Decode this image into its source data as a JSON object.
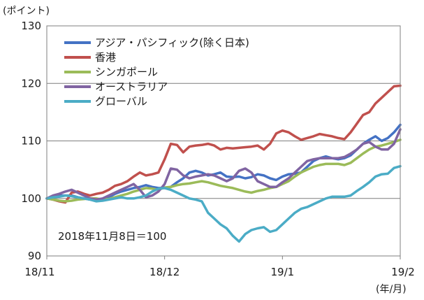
{
  "chart_data": {
    "type": "line",
    "yunit": "(ポイント)",
    "xunit": "(年/月)",
    "note": "2018年11月8日＝100",
    "ylim": [
      90,
      130
    ],
    "yticks": [
      90,
      100,
      110,
      120,
      130
    ],
    "ytick_labels": [
      "90",
      "100",
      "110",
      "120",
      "130"
    ],
    "xlim": [
      0,
      57
    ],
    "xticks": [
      {
        "pos": 0,
        "label": "18/11"
      },
      {
        "pos": 19,
        "label": "18/12"
      },
      {
        "pos": 38,
        "label": "19/1"
      },
      {
        "pos": 57,
        "label": "19/2"
      }
    ],
    "grid": "horizontal",
    "legend": "top-left",
    "series": [
      {
        "name": "アジア・パシフィック(除く日本)",
        "color": "#4472C4",
        "values": [
          100,
          100.3,
          100.5,
          100.5,
          100.5,
          100.2,
          100.0,
          99.8,
          99.7,
          99.8,
          100.2,
          100.8,
          101.2,
          101.5,
          101.8,
          102.0,
          102.3,
          102.0,
          101.8,
          101.8,
          102.0,
          102.8,
          103.5,
          104.5,
          104.8,
          104.5,
          104.0,
          104.2,
          104.5,
          103.8,
          103.7,
          103.8,
          103.5,
          103.7,
          104.2,
          104.0,
          103.5,
          103.2,
          103.8,
          104.2,
          104.3,
          104.5,
          105.5,
          106.5,
          107.0,
          107.3,
          107.0,
          106.8,
          107.0,
          107.5,
          108.5,
          109.5,
          110.2,
          110.8,
          110.0,
          110.5,
          111.5,
          112.8
        ]
      },
      {
        "name": "香港",
        "color": "#C0504D",
        "values": [
          100,
          99.8,
          99.5,
          99.3,
          101.0,
          101.2,
          100.8,
          100.5,
          100.8,
          101.0,
          101.5,
          102.2,
          102.5,
          103.0,
          103.8,
          104.5,
          104.0,
          104.2,
          104.5,
          106.8,
          109.5,
          109.3,
          108.0,
          109.0,
          109.2,
          109.3,
          109.5,
          109.2,
          108.5,
          108.8,
          108.7,
          108.8,
          108.9,
          109.0,
          109.2,
          108.5,
          109.5,
          111.3,
          111.8,
          111.5,
          110.8,
          110.2,
          110.5,
          110.8,
          111.2,
          111.0,
          110.8,
          110.5,
          110.3,
          111.5,
          113.0,
          114.5,
          115.0,
          116.5,
          117.5,
          118.5,
          119.5,
          119.6
        ]
      },
      {
        "name": "シンガポール",
        "color": "#9BBB59",
        "values": [
          100,
          99.8,
          99.6,
          99.5,
          99.6,
          99.8,
          99.9,
          100.0,
          100.0,
          99.8,
          99.9,
          100.2,
          100.5,
          100.8,
          101.2,
          101.5,
          101.8,
          101.7,
          101.5,
          101.9,
          102.0,
          102.3,
          102.5,
          102.6,
          102.8,
          103.0,
          102.8,
          102.5,
          102.2,
          102.0,
          101.8,
          101.5,
          101.2,
          101.0,
          101.3,
          101.5,
          101.8,
          102.0,
          102.5,
          103.0,
          103.8,
          104.5,
          105.0,
          105.5,
          105.8,
          106.0,
          106.0,
          106.0,
          105.8,
          106.2,
          107.0,
          107.8,
          108.5,
          109.0,
          109.2,
          109.5,
          109.8,
          110.2
        ]
      },
      {
        "name": "オーストラリア",
        "color": "#8064A2",
        "values": [
          100,
          100.5,
          100.8,
          101.2,
          101.5,
          101.0,
          100.5,
          100.0,
          99.8,
          100.0,
          100.5,
          101.0,
          101.5,
          102.0,
          102.5,
          101.5,
          100.2,
          100.5,
          101.2,
          102.5,
          105.2,
          105.0,
          104.0,
          103.5,
          103.8,
          104.0,
          104.2,
          104.0,
          103.5,
          103.0,
          103.5,
          104.8,
          105.2,
          104.5,
          103.0,
          102.5,
          102.0,
          102.0,
          102.8,
          103.5,
          104.5,
          105.5,
          106.5,
          106.8,
          107.0,
          107.0,
          107.0,
          107.0,
          107.2,
          107.8,
          108.5,
          109.5,
          109.8,
          109.0,
          108.5,
          108.5,
          109.5,
          112.0
        ]
      },
      {
        "name": "グローバル",
        "color": "#4BACC6",
        "values": [
          100,
          100.2,
          100.3,
          100.5,
          100.4,
          100.2,
          100.0,
          99.8,
          99.5,
          99.6,
          99.8,
          100.0,
          100.2,
          100.0,
          100.0,
          100.2,
          100.5,
          101.2,
          101.7,
          101.8,
          101.5,
          101.0,
          100.5,
          100.0,
          99.8,
          99.5,
          97.5,
          96.5,
          95.5,
          94.8,
          93.5,
          92.5,
          93.8,
          94.5,
          94.8,
          95.0,
          94.2,
          94.5,
          95.5,
          96.5,
          97.5,
          98.2,
          98.5,
          99.0,
          99.5,
          100.0,
          100.3,
          100.3,
          100.3,
          100.5,
          101.3,
          102.0,
          102.8,
          103.8,
          104.2,
          104.3,
          105.3,
          105.6
        ]
      }
    ]
  }
}
